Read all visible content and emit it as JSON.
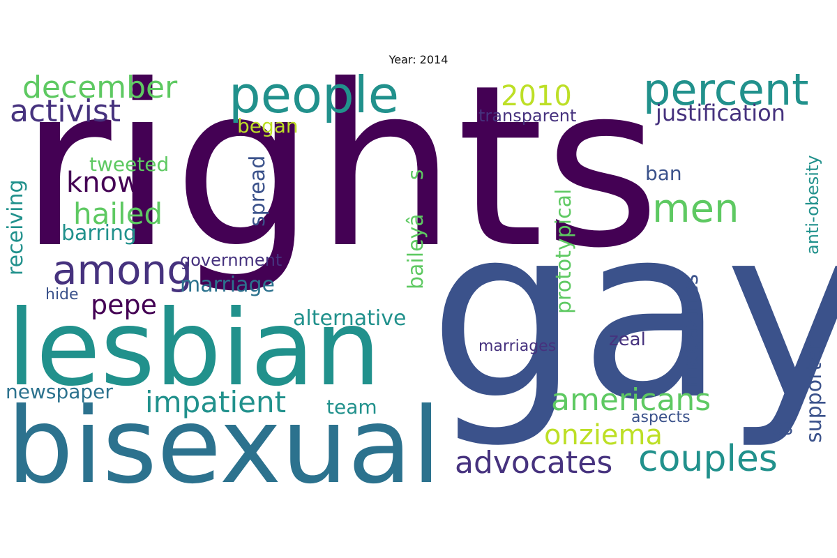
{
  "title": "Year: 2014",
  "words": [
    {
      "text": "rights",
      "color": "#440154"
    },
    {
      "text": "gay",
      "color": "#3b528b"
    },
    {
      "text": "lesbian",
      "color": "#21918c"
    },
    {
      "text": "bisexual",
      "color": "#2c728e"
    },
    {
      "text": "people",
      "color": "#21918c"
    },
    {
      "text": "percent",
      "color": "#21918c"
    },
    {
      "text": "men",
      "color": "#5ec962"
    },
    {
      "text": "among",
      "color": "#46327e"
    },
    {
      "text": "december",
      "color": "#5ec962"
    },
    {
      "text": "activist",
      "color": "#46327e"
    },
    {
      "text": "2010",
      "color": "#bddf26"
    },
    {
      "text": "hailed",
      "color": "#5ec962"
    },
    {
      "text": "know",
      "color": "#440154"
    },
    {
      "text": "tweeted",
      "color": "#5ec962"
    },
    {
      "text": "began",
      "color": "#bddf26"
    },
    {
      "text": "americans",
      "color": "#5ec962"
    },
    {
      "text": "couples",
      "color": "#21918c"
    },
    {
      "text": "advocates",
      "color": "#46327e"
    },
    {
      "text": "onziema",
      "color": "#bddf26"
    },
    {
      "text": "impatient",
      "color": "#21918c"
    },
    {
      "text": "pepe",
      "color": "#440154"
    },
    {
      "text": "marriage",
      "color": "#2c728e"
    },
    {
      "text": "alternative",
      "color": "#21918c"
    },
    {
      "text": "barring",
      "color": "#21918c"
    },
    {
      "text": "government",
      "color": "#46327e"
    },
    {
      "text": "newspaper",
      "color": "#2c728e"
    },
    {
      "text": "team",
      "color": "#21918c"
    },
    {
      "text": "justification",
      "color": "#46327e"
    },
    {
      "text": "transparent",
      "color": "#46327e"
    },
    {
      "text": "ban",
      "color": "#3b528b"
    },
    {
      "text": "hide",
      "color": "#3b528b"
    },
    {
      "text": "marriages",
      "color": "#46327e"
    },
    {
      "text": "zeal",
      "color": "#46327e"
    },
    {
      "text": "aspects",
      "color": "#3b528b"
    },
    {
      "text": "83",
      "color": "#3b528b"
    },
    {
      "text": "receiving",
      "color": "#21918c"
    },
    {
      "text": "spread",
      "color": "#3b528b"
    },
    {
      "text": "baileyâs",
      "color": "#5ec962"
    },
    {
      "text": "prototypical",
      "color": "#5ec962"
    },
    {
      "text": "magazines",
      "color": "#3b528b"
    },
    {
      "text": "supporter",
      "color": "#3b528b"
    },
    {
      "text": "anti-obesity",
      "color": "#21918c"
    }
  ]
}
